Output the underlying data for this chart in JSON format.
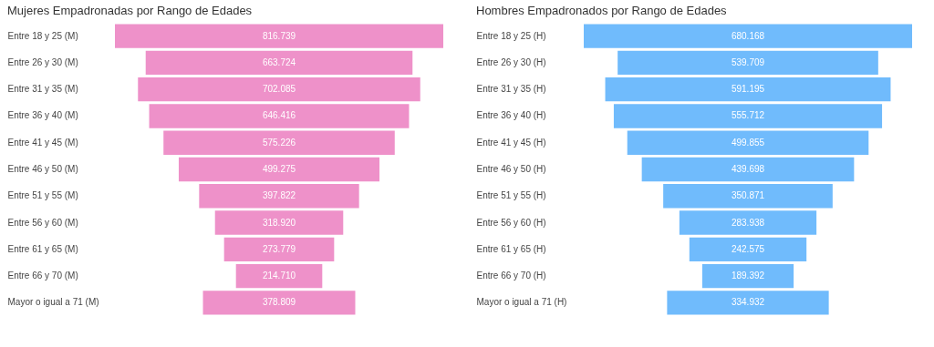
{
  "chart_data": [
    {
      "type": "other",
      "title": "Mujeres Empadronadas por Rango de Edades",
      "categories": [
        "Entre 18 y 25 (M)",
        "Entre 26 y 30 (M)",
        "Entre 31 y 35 (M)",
        "Entre 36 y 40 (M)",
        "Entre 41 y 45 (M)",
        "Entre 46 y 50 (M)",
        "Entre 51 y 55 (M)",
        "Entre 56 y 60 (M)",
        "Entre 61 y 65 (M)",
        "Entre 66 y 70 (M)",
        "Mayor o igual a 71 (M)"
      ],
      "values": [
        816739,
        663724,
        702085,
        646416,
        575226,
        499275,
        397822,
        318920,
        273779,
        214710,
        378809
      ],
      "value_labels": [
        "816.739",
        "663.724",
        "702.085",
        "646.416",
        "575.226",
        "499.275",
        "397.822",
        "318.920",
        "273.779",
        "214.710",
        "378.809"
      ],
      "color": "#ee91c9"
    },
    {
      "type": "other",
      "title": "Hombres Empadronados por Rango de Edades",
      "categories": [
        "Entre 18 y 25 (H)",
        "Entre 26 y 30 (H)",
        "Entre 31 y 35 (H)",
        "Entre 36 y 40 (H)",
        "Entre 41 y 45 (H)",
        "Entre 46 y 50 (H)",
        "Entre 51 y 55 (H)",
        "Entre 56 y 60 (H)",
        "Entre 61 y 65 (H)",
        "Entre 66 y 70 (H)",
        "Mayor o igual a 71 (H)"
      ],
      "values": [
        680168,
        539709,
        591195,
        555712,
        499855,
        439698,
        350871,
        283938,
        242575,
        189392,
        334932
      ],
      "value_labels": [
        "680.168",
        "539.709",
        "591.195",
        "555.712",
        "499.855",
        "439.698",
        "350.871",
        "283.938",
        "242.575",
        "189.392",
        "334.932"
      ],
      "color": "#70bbfc"
    }
  ]
}
